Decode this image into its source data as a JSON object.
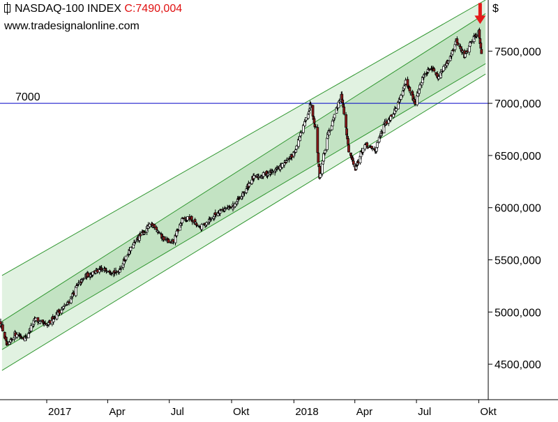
{
  "header": {
    "title": "NASDAQ-100 INDEX",
    "close_label": "C:7490,004",
    "url": "www.tradesignalonline.com"
  },
  "colors": {
    "background": "#ffffff",
    "inner_channel": "#c3e3c3",
    "outer_channel": "#e1f2e1",
    "channel_line": "#2f962f",
    "reference_line": "#0000c8",
    "up_candle": "#ffffff",
    "down_candle": "#8b1a1a",
    "arrow": "#e41a1a",
    "close_text": "#e01010"
  },
  "chart_data": {
    "type": "candlestick",
    "title": "NASDAQ-100 INDEX",
    "close_value": "C:7490,004",
    "currency_label": "$",
    "y_tick_labels": [
      "7500,000",
      "7000,000",
      "6500,000",
      "6000,000",
      "5500,000",
      "5000,000",
      "4500,000"
    ],
    "y_ticks": [
      7500,
      7000,
      6500,
      6000,
      5500,
      5000,
      4500
    ],
    "ylim": [
      4160,
      7990
    ],
    "x_range": [
      "2016-10-24",
      "2018-10-15"
    ],
    "x_tick_labels": [
      "2017",
      "Apr",
      "Jul",
      "Okt",
      "2018",
      "Apr",
      "Jul",
      "Okt"
    ],
    "x_ticks": [
      "2017-01-01",
      "2017-04-01",
      "2017-07-01",
      "2017-10-01",
      "2018-01-01",
      "2018-04-01",
      "2018-07-01",
      "2018-10-01"
    ],
    "reference_line": {
      "value": 7000,
      "label": "7000"
    },
    "close_path": [
      [
        "2016-10-25",
        4900
      ],
      [
        "2016-11-04",
        4660
      ],
      [
        "2016-11-15",
        4790
      ],
      [
        "2016-12-01",
        4750
      ],
      [
        "2016-12-15",
        4930
      ],
      [
        "2017-01-01",
        4860
      ],
      [
        "2017-01-15",
        4980
      ],
      [
        "2017-02-01",
        5080
      ],
      [
        "2017-02-15",
        5250
      ],
      [
        "2017-03-01",
        5350
      ],
      [
        "2017-03-15",
        5390
      ],
      [
        "2017-04-01",
        5410
      ],
      [
        "2017-04-15",
        5370
      ],
      [
        "2017-05-01",
        5560
      ],
      [
        "2017-05-15",
        5700
      ],
      [
        "2017-06-01",
        5820
      ],
      [
        "2017-06-09",
        5830
      ],
      [
        "2017-06-20",
        5720
      ],
      [
        "2017-07-05",
        5650
      ],
      [
        "2017-07-20",
        5880
      ],
      [
        "2017-08-01",
        5900
      ],
      [
        "2017-08-15",
        5800
      ],
      [
        "2017-09-01",
        5900
      ],
      [
        "2017-09-15",
        5980
      ],
      [
        "2017-10-01",
        6000
      ],
      [
        "2017-10-15",
        6100
      ],
      [
        "2017-11-01",
        6280
      ],
      [
        "2017-11-15",
        6310
      ],
      [
        "2017-12-01",
        6350
      ],
      [
        "2017-12-15",
        6400
      ],
      [
        "2018-01-01",
        6520
      ],
      [
        "2018-01-15",
        6770
      ],
      [
        "2018-01-26",
        7000
      ],
      [
        "2018-02-02",
        6760
      ],
      [
        "2018-02-08",
        6300
      ],
      [
        "2018-02-20",
        6700
      ],
      [
        "2018-03-01",
        6850
      ],
      [
        "2018-03-12",
        7100
      ],
      [
        "2018-03-23",
        6550
      ],
      [
        "2018-04-02",
        6380
      ],
      [
        "2018-04-15",
        6600
      ],
      [
        "2018-05-01",
        6550
      ],
      [
        "2018-05-15",
        6800
      ],
      [
        "2018-06-01",
        6950
      ],
      [
        "2018-06-15",
        7200
      ],
      [
        "2018-06-29",
        7000
      ],
      [
        "2018-07-10",
        7250
      ],
      [
        "2018-07-25",
        7350
      ],
      [
        "2018-08-01",
        7250
      ],
      [
        "2018-08-15",
        7380
      ],
      [
        "2018-08-29",
        7600
      ],
      [
        "2018-09-10",
        7450
      ],
      [
        "2018-09-20",
        7600
      ],
      [
        "2018-10-01",
        7690
      ],
      [
        "2018-10-05",
        7490
      ]
    ],
    "channel": {
      "dates": [
        "2016-10-27",
        "2018-10-11"
      ],
      "outer_upper": [
        5350,
        7990
      ],
      "inner_upper": [
        4910,
        7860
      ],
      "inner_lower": [
        4640,
        7380
      ],
      "outer_lower": [
        4440,
        7280
      ]
    },
    "annotation": {
      "type": "arrow-down",
      "date": "2018-10-03",
      "value": 7760
    }
  }
}
